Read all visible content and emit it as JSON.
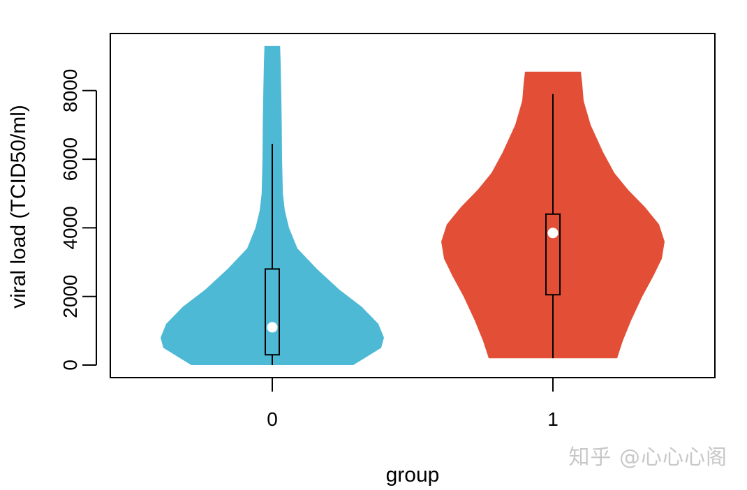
{
  "chart_data": {
    "type": "violin",
    "xlabel": "group",
    "ylabel": "viral load (TCID50/ml)",
    "categories": [
      "0",
      "1"
    ],
    "y_ticks": [
      "0",
      "2000",
      "4000",
      "6000",
      "8000"
    ],
    "ylim": [
      -400,
      9650
    ],
    "grid": false,
    "legend": "none",
    "series": [
      {
        "category": "0",
        "color": "#4EB9D5",
        "range": [
          0,
          9300
        ],
        "box": {
          "whisker_low": 0,
          "q1": 300,
          "median": 1100,
          "q3": 2800,
          "whisker_high": 6450
        },
        "density": [
          [
            0,
            0.29
          ],
          [
            200,
            0.33
          ],
          [
            500,
            0.39
          ],
          [
            800,
            0.4
          ],
          [
            1200,
            0.38
          ],
          [
            1700,
            0.32
          ],
          [
            2200,
            0.24
          ],
          [
            2800,
            0.16
          ],
          [
            3400,
            0.09
          ],
          [
            4000,
            0.06
          ],
          [
            4500,
            0.045
          ],
          [
            5000,
            0.038
          ],
          [
            6000,
            0.035
          ],
          [
            7000,
            0.034
          ],
          [
            8000,
            0.032
          ],
          [
            8800,
            0.03
          ],
          [
            9300,
            0.028
          ]
        ]
      },
      {
        "category": "1",
        "color": "#E34E36",
        "range": [
          200,
          8550
        ],
        "box": {
          "whisker_low": 200,
          "q1": 2050,
          "median": 3850,
          "q3": 4400,
          "whisker_high": 7900
        },
        "density": [
          [
            200,
            0.23
          ],
          [
            700,
            0.25
          ],
          [
            1300,
            0.28
          ],
          [
            2000,
            0.32
          ],
          [
            2600,
            0.36
          ],
          [
            3100,
            0.39
          ],
          [
            3600,
            0.4
          ],
          [
            4100,
            0.38
          ],
          [
            4600,
            0.33
          ],
          [
            5100,
            0.27
          ],
          [
            5600,
            0.22
          ],
          [
            6200,
            0.18
          ],
          [
            7000,
            0.135
          ],
          [
            7700,
            0.11
          ],
          [
            8200,
            0.105
          ],
          [
            8550,
            0.1
          ]
        ]
      }
    ]
  },
  "watermark": "知乎 @心心心阁"
}
